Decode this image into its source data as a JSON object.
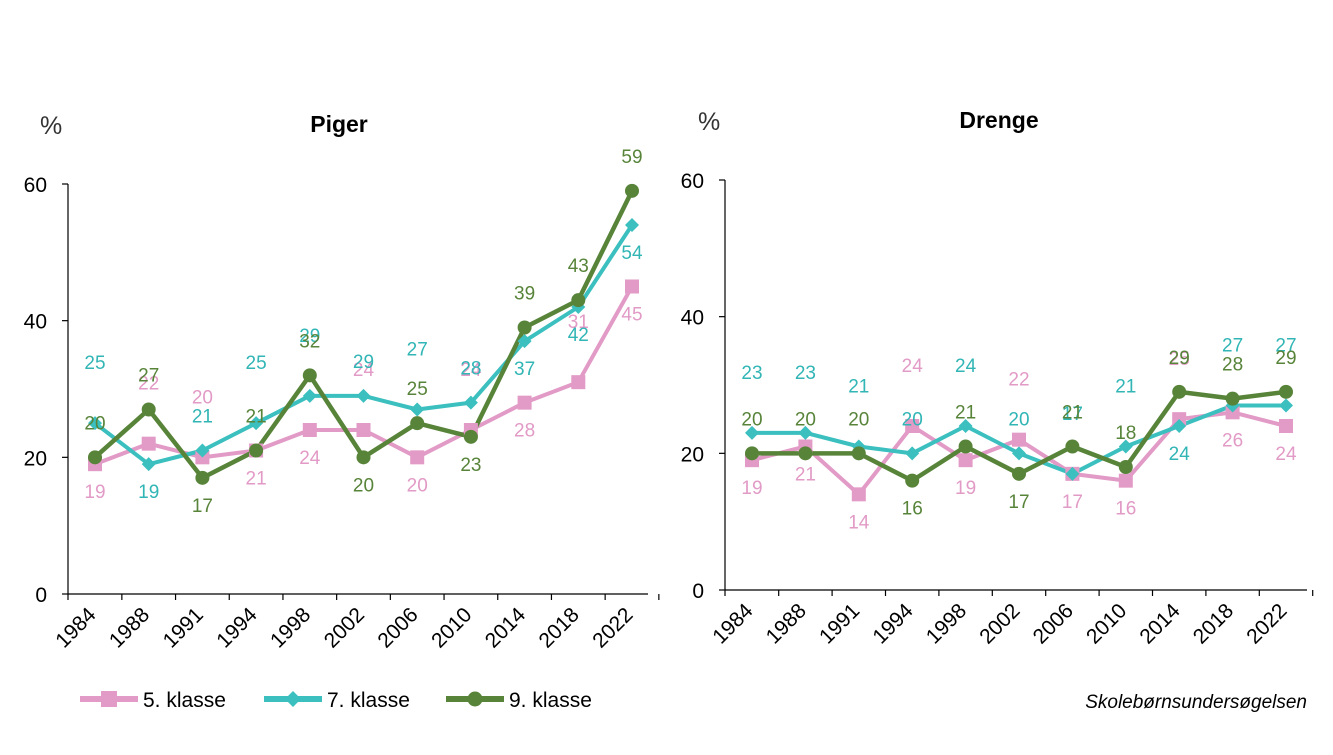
{
  "chart_data": [
    {
      "type": "line",
      "title": "Piger",
      "ylabel": "%",
      "xlabel": "",
      "ylim": [
        0,
        60
      ],
      "yticks": [
        0,
        20,
        40,
        60
      ],
      "categories": [
        "1984",
        "1988",
        "1991",
        "1994",
        "1998",
        "2002",
        "2006",
        "2010",
        "2014",
        "2018",
        "2022"
      ],
      "series": [
        {
          "name": "5. klasse",
          "values": [
            19,
            22,
            20,
            21,
            24,
            24,
            20,
            24,
            28,
            31,
            45
          ]
        },
        {
          "name": "7. klasse",
          "values": [
            25,
            19,
            21,
            25,
            29,
            29,
            27,
            28,
            37,
            42,
            54
          ]
        },
        {
          "name": "9. klasse",
          "values": [
            20,
            27,
            17,
            21,
            32,
            20,
            25,
            23,
            39,
            43,
            59
          ]
        }
      ]
    },
    {
      "type": "line",
      "title": "Drenge",
      "ylabel": "%",
      "xlabel": "",
      "ylim": [
        0,
        60
      ],
      "yticks": [
        0,
        20,
        40,
        60
      ],
      "categories": [
        "1984",
        "1988",
        "1991",
        "1994",
        "1998",
        "2002",
        "2006",
        "2010",
        "2014",
        "2018",
        "2022"
      ],
      "series": [
        {
          "name": "5. klasse",
          "values": [
            19,
            21,
            14,
            24,
            19,
            22,
            17,
            16,
            25,
            26,
            24
          ]
        },
        {
          "name": "7. klasse",
          "values": [
            23,
            23,
            21,
            20,
            24,
            20,
            17,
            21,
            24,
            27,
            27
          ]
        },
        {
          "name": "9. klasse",
          "values": [
            20,
            20,
            20,
            16,
            21,
            17,
            21,
            18,
            29,
            28,
            29
          ]
        }
      ]
    }
  ],
  "legend": [
    {
      "name": "5. klasse",
      "color": "#e29ac6",
      "marker": "square"
    },
    {
      "name": "7. klasse",
      "color": "#3bbfbf",
      "marker": "diamond"
    },
    {
      "name": "9. klasse",
      "color": "#58843a",
      "marker": "circle"
    }
  ],
  "source": "Skolebørnsundersøgelsen"
}
